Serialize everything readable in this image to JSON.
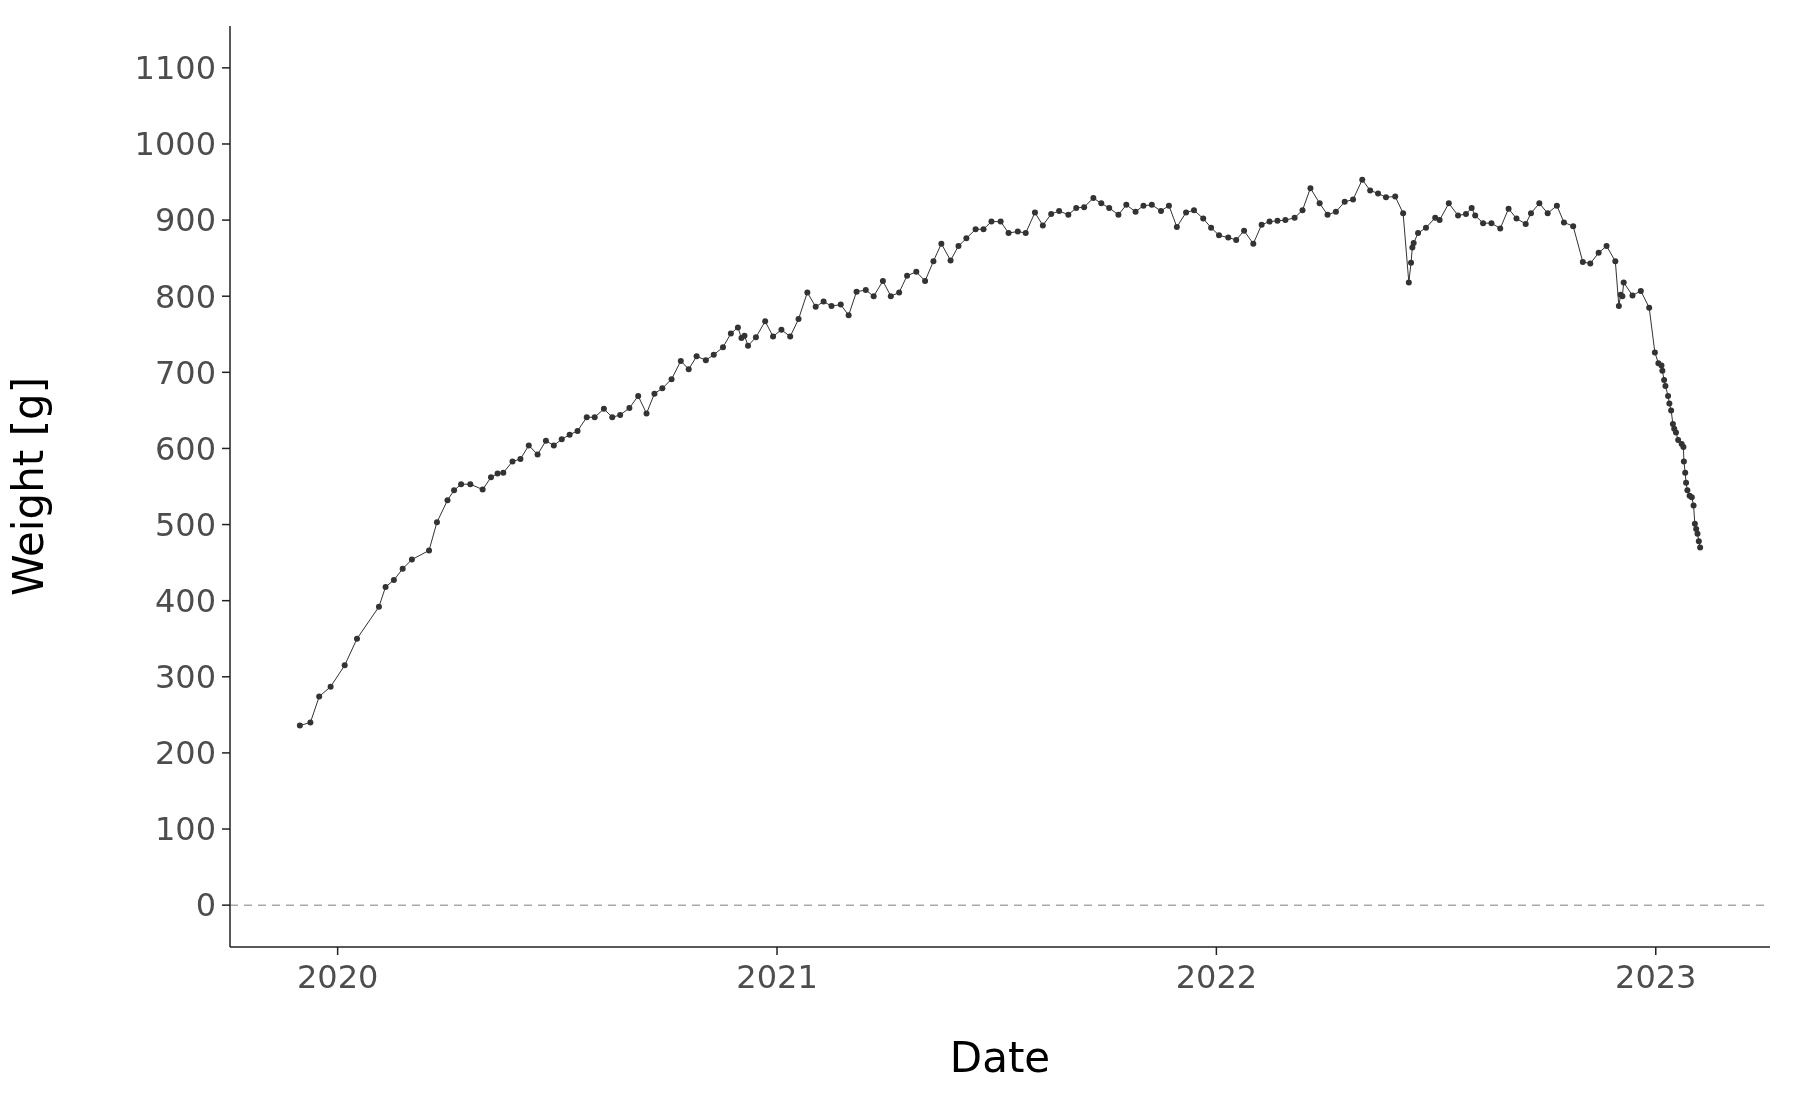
{
  "chart_data": {
    "type": "line",
    "xlabel": "Date",
    "ylabel": "Weight [g]",
    "x": [
      2019.914,
      2019.938,
      2019.958,
      2019.984,
      2020.016,
      2020.044,
      2020.094,
      2020.109,
      2020.128,
      2020.148,
      2020.169,
      2020.208,
      2020.226,
      2020.25,
      2020.265,
      2020.281,
      2020.302,
      2020.33,
      2020.349,
      2020.364,
      2020.377,
      2020.398,
      2020.416,
      2020.435,
      2020.455,
      2020.474,
      2020.492,
      2020.51,
      2020.528,
      2020.546,
      2020.567,
      2020.585,
      2020.606,
      2020.625,
      2020.643,
      2020.664,
      2020.684,
      2020.703,
      2020.721,
      2020.739,
      2020.76,
      2020.781,
      2020.799,
      2020.817,
      2020.838,
      2020.856,
      2020.877,
      2020.895,
      2020.911,
      2020.919,
      2020.926,
      2020.934,
      2020.952,
      2020.973,
      2020.991,
      2021.01,
      2021.03,
      2021.049,
      2021.069,
      2021.088,
      2021.106,
      2021.124,
      2021.145,
      2021.163,
      2021.181,
      2021.202,
      2021.22,
      2021.241,
      2021.259,
      2021.278,
      2021.296,
      2021.317,
      2021.337,
      2021.356,
      2021.374,
      2021.395,
      2021.413,
      2021.431,
      2021.452,
      2021.47,
      2021.488,
      2021.509,
      2021.527,
      2021.548,
      2021.566,
      2021.587,
      2021.605,
      2021.624,
      2021.642,
      2021.663,
      2021.681,
      2021.699,
      2021.72,
      2021.738,
      2021.756,
      2021.777,
      2021.795,
      2021.816,
      2021.834,
      2021.853,
      2021.874,
      2021.892,
      2021.91,
      2021.931,
      2021.949,
      2021.97,
      2021.988,
      2022.006,
      2022.027,
      2022.045,
      2022.063,
      2022.084,
      2022.103,
      2022.121,
      2022.139,
      2022.157,
      2022.178,
      2022.196,
      2022.214,
      2022.235,
      2022.253,
      2022.272,
      2022.292,
      2022.311,
      2022.332,
      2022.35,
      2022.368,
      2022.386,
      2022.407,
      2022.425,
      2022.438,
      2022.443,
      2022.446,
      2022.449,
      2022.459,
      2022.477,
      2022.498,
      2022.508,
      2022.529,
      2022.55,
      2022.568,
      2022.581,
      2022.589,
      2022.607,
      2022.626,
      2022.646,
      2022.665,
      2022.683,
      2022.704,
      2022.716,
      2022.735,
      2022.754,
      2022.775,
      2022.791,
      2022.812,
      2022.834,
      2022.851,
      2022.87,
      2022.888,
      2022.908,
      2022.916,
      2022.92,
      2022.924,
      2022.927,
      2022.947,
      2022.966,
      2022.985,
      2022.998,
      2023.006,
      2023.013,
      2023.015,
      2023.019,
      2023.022,
      2023.028,
      2023.031,
      2023.035,
      2023.039,
      2023.042,
      2023.046,
      2023.051,
      2023.059,
      2023.063,
      2023.064,
      2023.067,
      2023.069,
      2023.072,
      2023.077,
      2023.082,
      2023.086,
      2023.089,
      2023.092,
      2023.095,
      2023.098,
      2023.101
    ],
    "values": [
      236,
      240,
      274,
      287,
      315,
      350,
      392,
      418,
      427,
      442,
      454,
      466,
      503,
      532,
      545,
      553,
      553,
      546,
      562,
      567,
      568,
      583,
      586,
      604,
      592,
      610,
      604,
      612,
      618,
      623,
      641,
      641,
      652,
      641,
      644,
      653,
      669,
      646,
      672,
      679,
      691,
      715,
      704,
      721,
      716,
      723,
      733,
      751,
      759,
      745,
      748,
      735,
      746,
      767,
      747,
      756,
      747,
      770,
      805,
      786,
      793,
      787,
      789,
      775,
      806,
      808,
      800,
      820,
      800,
      805,
      827,
      832,
      820,
      846,
      869,
      847,
      866,
      876,
      888,
      888,
      898,
      898,
      883,
      885,
      883,
      910,
      893,
      908,
      912,
      907,
      916,
      917,
      929,
      922,
      916,
      907,
      920,
      911,
      919,
      920,
      912,
      919,
      891,
      910,
      913,
      902,
      890,
      880,
      877,
      874,
      886,
      869,
      894,
      898,
      899,
      900,
      903,
      913,
      942,
      922,
      907,
      911,
      924,
      927,
      953,
      939,
      935,
      930,
      931,
      909,
      818,
      844,
      864,
      870,
      883,
      890,
      903,
      900,
      922,
      906,
      908,
      916,
      906,
      896,
      896,
      889,
      915,
      902,
      895,
      909,
      922,
      909,
      919,
      897,
      892,
      845,
      843,
      857,
      866,
      846,
      787,
      802,
      800,
      818,
      801,
      807,
      785,
      726,
      712,
      709,
      702,
      690,
      682,
      669,
      659,
      650,
      632,
      626,
      621,
      611,
      606,
      602,
      583,
      568,
      555,
      545,
      538,
      536,
      525,
      501,
      494,
      488,
      478,
      470
    ],
    "color": "#333333",
    "marker": "circle",
    "line_style": "solid",
    "xlim": [
      2019.755,
      2023.26
    ],
    "xticks": [
      2020,
      2021,
      2022,
      2023
    ],
    "ylim": [
      -55,
      1155
    ],
    "yticks": [
      0,
      100,
      200,
      300,
      400,
      500,
      600,
      700,
      800,
      900,
      1000,
      1100
    ],
    "grid": false,
    "ref_lines": [
      {
        "axis": "y",
        "value": 0,
        "color": "#aaaaaa",
        "line_style": "dashed"
      }
    ]
  }
}
